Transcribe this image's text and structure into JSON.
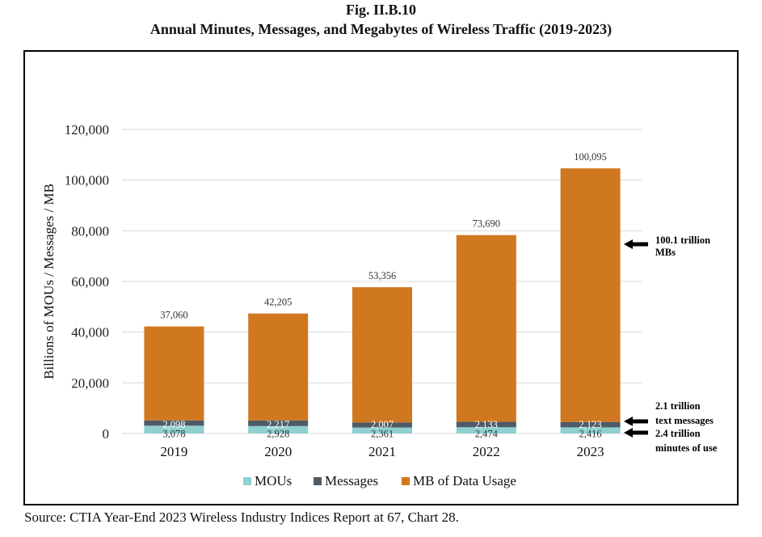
{
  "figure": {
    "label": "Fig. II.B.10",
    "title": "Annual Minutes, Messages, and Megabytes of Wireless Traffic (2019-2023)",
    "source": "Source:  CTIA Year-End 2023 Wireless Industry Indices Report at 67, Chart 28."
  },
  "chart_data": {
    "type": "bar",
    "stacked": true,
    "categories": [
      "2019",
      "2020",
      "2021",
      "2022",
      "2023"
    ],
    "series": [
      {
        "name": "MOUs",
        "color": "#8fd0d0",
        "values": [
          3078,
          2928,
          2361,
          2474,
          2416
        ],
        "labels": [
          "3,078",
          "2,928",
          "2,361",
          "2,474",
          "2,416"
        ]
      },
      {
        "name": "Messages",
        "color": "#4f5b66",
        "values": [
          2098,
          2217,
          2007,
          2133,
          2123
        ],
        "labels": [
          "2,098",
          "2,217",
          "2,007",
          "2,133",
          "2,123"
        ]
      },
      {
        "name": "MB of Data Usage",
        "color": "#d07820",
        "values": [
          37060,
          42205,
          53356,
          73690,
          100095
        ],
        "labels": [
          "37,060",
          "42,205",
          "53,356",
          "73,690",
          "100,095"
        ]
      }
    ],
    "ylabel": "Billions  of MOUs / Messages / MB",
    "ylim": [
      0,
      120000
    ],
    "yticks": [
      0,
      20000,
      40000,
      60000,
      80000,
      100000,
      120000
    ],
    "ytick_labels": [
      "0",
      "20,000",
      "40,000",
      "60,000",
      "80,000",
      "100,000",
      "120,000"
    ],
    "grid": true,
    "legend_position": "bottom",
    "annotations": [
      {
        "lines": [
          "100.1 trillion",
          "MBs"
        ],
        "points_to": "MB of Data Usage"
      },
      {
        "lines": [
          "2.1 trillion",
          "text messages"
        ],
        "points_to": "Messages"
      },
      {
        "lines": [
          "2.4 trillion",
          "minutes of use"
        ],
        "points_to": "MOUs"
      }
    ]
  }
}
